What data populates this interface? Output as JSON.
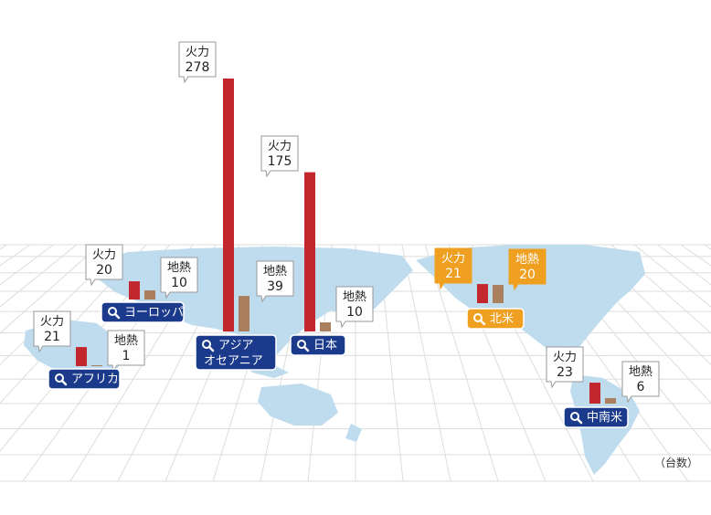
{
  "colors": {
    "thermal": "#c1272d",
    "geothermal": "#a97f5d",
    "region_button": "#1b3a8c",
    "region_button_active": "#f0a020",
    "land": "#bfdcee",
    "grid": "#dddddd"
  },
  "icons": {
    "region_button": "search-icon"
  },
  "unit_label": "（台数）",
  "chart_data": {
    "type": "bar",
    "categories": [
      "ヨーロッパ",
      "アフリカ",
      "アジア オセアニア",
      "日本",
      "北米",
      "中南米"
    ],
    "series": [
      {
        "name": "火力",
        "values": [
          20,
          21,
          278,
          175,
          21,
          23
        ]
      },
      {
        "name": "地熱",
        "values": [
          10,
          1,
          39,
          10,
          20,
          6
        ]
      }
    ],
    "regions": [
      {
        "key": "europe",
        "label_lines": [
          "ヨーロッパ"
        ],
        "active": false,
        "thermal": {
          "label": "火力",
          "value": 20
        },
        "geothermal": {
          "label": "地熱",
          "value": 10
        }
      },
      {
        "key": "africa",
        "label_lines": [
          "アフリカ"
        ],
        "active": false,
        "thermal": {
          "label": "火力",
          "value": 21
        },
        "geothermal": {
          "label": "地熱",
          "value": 1
        }
      },
      {
        "key": "asia",
        "label_lines": [
          "アジア",
          "オセアニア"
        ],
        "active": false,
        "thermal": {
          "label": "火力",
          "value": 278
        },
        "geothermal": {
          "label": "地熱",
          "value": 39
        }
      },
      {
        "key": "japan",
        "label_lines": [
          "日本"
        ],
        "active": false,
        "thermal": {
          "label": "火力",
          "value": 175
        },
        "geothermal": {
          "label": "地熱",
          "value": 10
        }
      },
      {
        "key": "north-america",
        "label_lines": [
          "北米"
        ],
        "active": true,
        "thermal": {
          "label": "火力",
          "value": 21
        },
        "geothermal": {
          "label": "地熱",
          "value": 20
        }
      },
      {
        "key": "latin-america",
        "label_lines": [
          "中南米"
        ],
        "active": false,
        "thermal": {
          "label": "火力",
          "value": 23
        },
        "geothermal": {
          "label": "地熱",
          "value": 6
        }
      }
    ]
  }
}
